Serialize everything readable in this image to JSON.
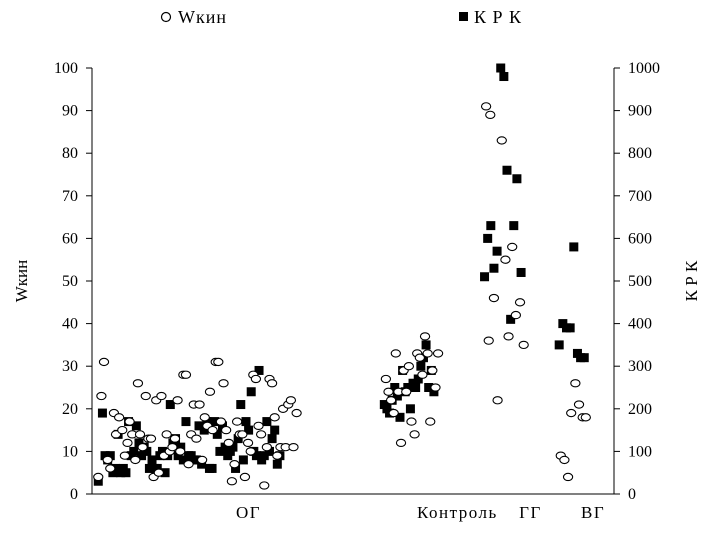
{
  "chart_data": {
    "type": "scatter",
    "legend_position": "top",
    "grid": false,
    "ylabel_left": "Wкин",
    "ylabel_right": "К Р К",
    "ylim_left": [
      0,
      100
    ],
    "ylim_right": [
      0,
      1000
    ],
    "yticks_left": [
      "0",
      "10",
      "20",
      "30",
      "40",
      "50",
      "60",
      "70",
      "80",
      "90",
      "100"
    ],
    "yticks_right": [
      "0",
      "100",
      "200",
      "300",
      "400",
      "500",
      "600",
      "700",
      "800",
      "900",
      "1000"
    ],
    "group_labels": [
      "ОГ",
      "Контроль",
      "ГГ",
      "ВГ"
    ],
    "x_domain": [
      0,
      100
    ],
    "group_x": [
      30,
      70,
      84,
      96
    ],
    "series": [
      {
        "name": "Wкин",
        "marker": "open-circle",
        "axis": "left",
        "points": [
          [
            1.2,
            4
          ],
          [
            1.8,
            23
          ],
          [
            2.3,
            31
          ],
          [
            3.0,
            8
          ],
          [
            3.5,
            6
          ],
          [
            4.2,
            19
          ],
          [
            4.6,
            14
          ],
          [
            5.2,
            18
          ],
          [
            5.8,
            15
          ],
          [
            6.3,
            9
          ],
          [
            6.8,
            12
          ],
          [
            7.2,
            17
          ],
          [
            7.7,
            14
          ],
          [
            8.3,
            8
          ],
          [
            8.8,
            26
          ],
          [
            9.2,
            14
          ],
          [
            9.7,
            11
          ],
          [
            10.3,
            23
          ],
          [
            10.8,
            13
          ],
          [
            11.3,
            13
          ],
          [
            11.8,
            4
          ],
          [
            12.3,
            22
          ],
          [
            12.8,
            5
          ],
          [
            13.3,
            23
          ],
          [
            13.8,
            9
          ],
          [
            14.3,
            14
          ],
          [
            14.9,
            10
          ],
          [
            15.4,
            11
          ],
          [
            15.9,
            13
          ],
          [
            16.4,
            22
          ],
          [
            16.9,
            10
          ],
          [
            17.5,
            28
          ],
          [
            18.0,
            28
          ],
          [
            18.5,
            7
          ],
          [
            19.0,
            14
          ],
          [
            19.5,
            21
          ],
          [
            20.0,
            13
          ],
          [
            20.6,
            21
          ],
          [
            21.1,
            8
          ],
          [
            21.6,
            18
          ],
          [
            22.1,
            16
          ],
          [
            22.6,
            24
          ],
          [
            23.1,
            15
          ],
          [
            23.7,
            31
          ],
          [
            24.2,
            31
          ],
          [
            24.7,
            17
          ],
          [
            25.2,
            26
          ],
          [
            25.7,
            15
          ],
          [
            26.2,
            12
          ],
          [
            26.8,
            3
          ],
          [
            27.3,
            7
          ],
          [
            27.8,
            17
          ],
          [
            28.3,
            14
          ],
          [
            28.8,
            14
          ],
          [
            29.3,
            4
          ],
          [
            29.9,
            12
          ],
          [
            30.4,
            10
          ],
          [
            30.9,
            28
          ],
          [
            31.4,
            27
          ],
          [
            31.9,
            16
          ],
          [
            32.4,
            14
          ],
          [
            33.0,
            2
          ],
          [
            33.5,
            11
          ],
          [
            34.0,
            27
          ],
          [
            34.5,
            26
          ],
          [
            35.0,
            18
          ],
          [
            35.5,
            9
          ],
          [
            36.1,
            11
          ],
          [
            36.6,
            20
          ],
          [
            37.1,
            11
          ],
          [
            37.6,
            21
          ],
          [
            38.1,
            22
          ],
          [
            38.6,
            11
          ],
          [
            39.2,
            19
          ],
          [
            56.3,
            27
          ],
          [
            56.8,
            24
          ],
          [
            57.3,
            22
          ],
          [
            57.8,
            19
          ],
          [
            58.2,
            33
          ],
          [
            58.7,
            24
          ],
          [
            59.2,
            12
          ],
          [
            59.7,
            29
          ],
          [
            60.2,
            24
          ],
          [
            60.7,
            30
          ],
          [
            61.2,
            17
          ],
          [
            61.8,
            14
          ],
          [
            62.3,
            33
          ],
          [
            62.8,
            32
          ],
          [
            63.3,
            28
          ],
          [
            63.8,
            37
          ],
          [
            64.3,
            33
          ],
          [
            64.8,
            17
          ],
          [
            65.2,
            29
          ],
          [
            65.8,
            25
          ],
          [
            66.3,
            33
          ],
          [
            75.5,
            91
          ],
          [
            76.3,
            89
          ],
          [
            77.0,
            46
          ],
          [
            77.7,
            22
          ],
          [
            78.5,
            83
          ],
          [
            79.2,
            55
          ],
          [
            79.8,
            37
          ],
          [
            80.5,
            58
          ],
          [
            81.2,
            42
          ],
          [
            82.0,
            45
          ],
          [
            82.7,
            35
          ],
          [
            76.0,
            36
          ],
          [
            89.8,
            9
          ],
          [
            90.5,
            8
          ],
          [
            91.2,
            4
          ],
          [
            91.8,
            19
          ],
          [
            92.6,
            26
          ],
          [
            93.3,
            21
          ],
          [
            94.0,
            18
          ],
          [
            94.6,
            18
          ]
        ]
      },
      {
        "name": "К Р К",
        "marker": "filled-square",
        "axis": "right",
        "points": [
          [
            1.2,
            30
          ],
          [
            2.0,
            190
          ],
          [
            2.5,
            90
          ],
          [
            3.0,
            80
          ],
          [
            3.5,
            90
          ],
          [
            4.0,
            50
          ],
          [
            4.5,
            60
          ],
          [
            5.0,
            140
          ],
          [
            5.5,
            50
          ],
          [
            6.0,
            60
          ],
          [
            6.5,
            50
          ],
          [
            7.0,
            170
          ],
          [
            7.5,
            90
          ],
          [
            8.0,
            100
          ],
          [
            8.5,
            160
          ],
          [
            9.0,
            120
          ],
          [
            9.5,
            90
          ],
          [
            10.0,
            110
          ],
          [
            10.5,
            100
          ],
          [
            11.0,
            60
          ],
          [
            11.5,
            80
          ],
          [
            12.0,
            60
          ],
          [
            12.5,
            60
          ],
          [
            13.0,
            90
          ],
          [
            13.5,
            100
          ],
          [
            14.0,
            50
          ],
          [
            14.5,
            90
          ],
          [
            15.0,
            210
          ],
          [
            15.5,
            120
          ],
          [
            16.0,
            130
          ],
          [
            16.5,
            90
          ],
          [
            17.0,
            110
          ],
          [
            17.5,
            80
          ],
          [
            18.0,
            170
          ],
          [
            18.5,
            90
          ],
          [
            19.0,
            90
          ],
          [
            19.5,
            80
          ],
          [
            20.0,
            80
          ],
          [
            20.5,
            160
          ],
          [
            21.0,
            70
          ],
          [
            21.5,
            150
          ],
          [
            22.0,
            170
          ],
          [
            22.5,
            60
          ],
          [
            23.0,
            60
          ],
          [
            23.5,
            170
          ],
          [
            24.0,
            140
          ],
          [
            24.5,
            100
          ],
          [
            25.0,
            160
          ],
          [
            25.5,
            110
          ],
          [
            26.0,
            90
          ],
          [
            26.5,
            100
          ],
          [
            27.0,
            110
          ],
          [
            27.5,
            60
          ],
          [
            28.0,
            130
          ],
          [
            28.5,
            210
          ],
          [
            29.0,
            80
          ],
          [
            29.5,
            170
          ],
          [
            30.0,
            150
          ],
          [
            30.5,
            240
          ],
          [
            31.0,
            100
          ],
          [
            31.5,
            90
          ],
          [
            32.0,
            290
          ],
          [
            32.5,
            80
          ],
          [
            33.0,
            90
          ],
          [
            33.5,
            170
          ],
          [
            34.0,
            100
          ],
          [
            34.5,
            130
          ],
          [
            35.0,
            150
          ],
          [
            35.5,
            70
          ],
          [
            36.0,
            90
          ],
          [
            56.0,
            210
          ],
          [
            56.5,
            200
          ],
          [
            57.0,
            190
          ],
          [
            57.5,
            220
          ],
          [
            58.0,
            250
          ],
          [
            58.5,
            230
          ],
          [
            59.0,
            180
          ],
          [
            59.5,
            290
          ],
          [
            60.0,
            240
          ],
          [
            60.5,
            250
          ],
          [
            61.0,
            200
          ],
          [
            61.5,
            260
          ],
          [
            62.0,
            250
          ],
          [
            62.5,
            270
          ],
          [
            63.0,
            300
          ],
          [
            63.5,
            320
          ],
          [
            64.0,
            350
          ],
          [
            64.5,
            250
          ],
          [
            65.0,
            290
          ],
          [
            65.5,
            240
          ],
          [
            75.2,
            510
          ],
          [
            75.8,
            600
          ],
          [
            76.4,
            630
          ],
          [
            77.0,
            530
          ],
          [
            77.6,
            570
          ],
          [
            78.3,
            1000
          ],
          [
            78.9,
            980
          ],
          [
            79.5,
            760
          ],
          [
            80.2,
            410
          ],
          [
            80.8,
            630
          ],
          [
            81.4,
            740
          ],
          [
            82.2,
            520
          ],
          [
            89.5,
            350
          ],
          [
            90.2,
            400
          ],
          [
            90.9,
            390
          ],
          [
            91.6,
            390
          ],
          [
            92.3,
            580
          ],
          [
            93.0,
            330
          ],
          [
            93.6,
            320
          ],
          [
            94.3,
            320
          ]
        ]
      }
    ]
  }
}
